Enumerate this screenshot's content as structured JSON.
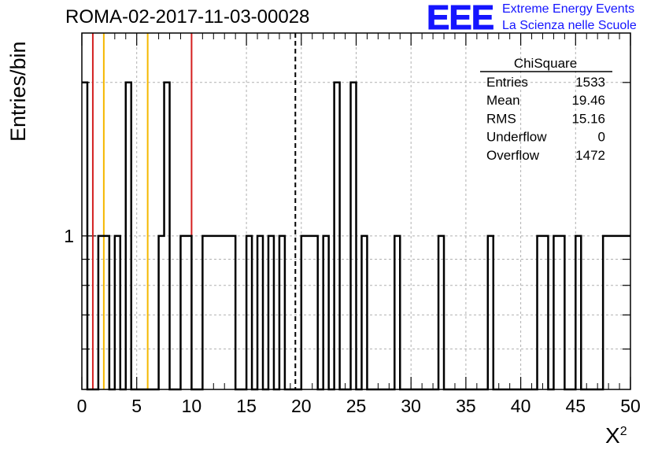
{
  "title": "ROMA-02-2017-11-03-00028",
  "logo": {
    "mark": "EEE",
    "line1": "Extreme Energy Events",
    "line2": "La Scienza nelle Scuole",
    "color": "#1515ff"
  },
  "chart_data": {
    "type": "histogram",
    "xlabel": "X",
    "xlabel_superscript": "2",
    "ylabel": "Entries/bin",
    "x_range": [
      0,
      50
    ],
    "y_scale": "log",
    "y_range": [
      0.5,
      2.5
    ],
    "bin_width": 0.5,
    "x_ticks": [
      0,
      5,
      10,
      15,
      20,
      25,
      30,
      35,
      40,
      45,
      50
    ],
    "x_tick_labels": [
      "0",
      "5",
      "10",
      "15",
      "20",
      "25",
      "30",
      "35",
      "40",
      "45",
      "50"
    ],
    "y_tick_labels": [
      {
        "value": 1,
        "label": "1"
      }
    ],
    "grid": true,
    "bins": [
      {
        "x": 0.0,
        "count": 2
      },
      {
        "x": 1.5,
        "count": 1
      },
      {
        "x": 2.0,
        "count": 1
      },
      {
        "x": 3.0,
        "count": 1
      },
      {
        "x": 4.0,
        "count": 2
      },
      {
        "x": 7.0,
        "count": 1
      },
      {
        "x": 7.5,
        "count": 2
      },
      {
        "x": 9.0,
        "count": 1
      },
      {
        "x": 9.5,
        "count": 1
      },
      {
        "x": 11.0,
        "count": 1
      },
      {
        "x": 11.5,
        "count": 1
      },
      {
        "x": 12.0,
        "count": 1
      },
      {
        "x": 12.5,
        "count": 1
      },
      {
        "x": 13.0,
        "count": 1
      },
      {
        "x": 13.5,
        "count": 1
      },
      {
        "x": 15.0,
        "count": 1
      },
      {
        "x": 16.0,
        "count": 1
      },
      {
        "x": 17.0,
        "count": 1
      },
      {
        "x": 18.0,
        "count": 1
      },
      {
        "x": 20.0,
        "count": 1
      },
      {
        "x": 20.5,
        "count": 1
      },
      {
        "x": 21.0,
        "count": 1
      },
      {
        "x": 22.0,
        "count": 1
      },
      {
        "x": 23.0,
        "count": 2
      },
      {
        "x": 24.5,
        "count": 2
      },
      {
        "x": 25.5,
        "count": 1
      },
      {
        "x": 28.5,
        "count": 1
      },
      {
        "x": 32.5,
        "count": 1
      },
      {
        "x": 37.0,
        "count": 1
      },
      {
        "x": 41.5,
        "count": 1
      },
      {
        "x": 42.0,
        "count": 1
      },
      {
        "x": 43.0,
        "count": 1
      },
      {
        "x": 43.5,
        "count": 1
      },
      {
        "x": 45.0,
        "count": 1
      },
      {
        "x": 47.5,
        "count": 1
      },
      {
        "x": 48.0,
        "count": 1
      },
      {
        "x": 48.5,
        "count": 1
      },
      {
        "x": 49.0,
        "count": 1
      },
      {
        "x": 49.5,
        "count": 1
      }
    ],
    "vertical_lines": [
      {
        "x": 1.0,
        "color": "#d42020",
        "style": "solid"
      },
      {
        "x": 2.0,
        "color": "#f5b800",
        "style": "solid"
      },
      {
        "x": 6.0,
        "color": "#f5b800",
        "style": "solid"
      },
      {
        "x": 10.0,
        "color": "#d42020",
        "style": "solid"
      },
      {
        "x": 19.46,
        "color": "#000000",
        "style": "dashed"
      }
    ],
    "stats": {
      "title": "ChiSquare",
      "rows": [
        {
          "label": "Entries",
          "value": "1533"
        },
        {
          "label": "Mean",
          "value": "19.46"
        },
        {
          "label": "RMS",
          "value": "15.16"
        },
        {
          "label": "Underflow",
          "value": "0"
        },
        {
          "label": "Overflow",
          "value": "1472"
        }
      ]
    }
  }
}
